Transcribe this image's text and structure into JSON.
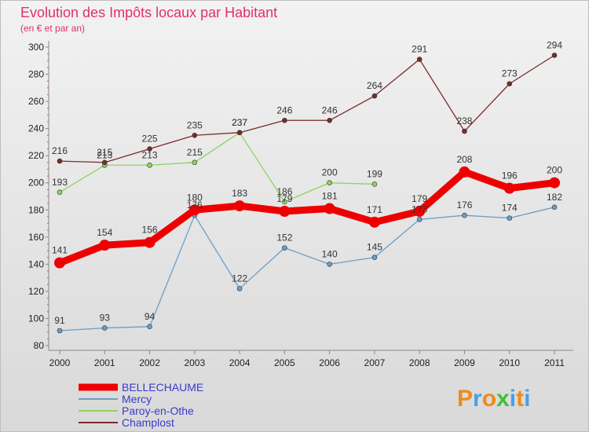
{
  "chart_data": {
    "type": "line",
    "title": "Evolution des Impôts locaux par Habitant",
    "subtitle": "(en € et par an)",
    "xlabel": "",
    "ylabel": "",
    "ylim": [
      80,
      300
    ],
    "yticks": [
      80,
      100,
      120,
      140,
      160,
      180,
      200,
      220,
      240,
      260,
      280,
      300
    ],
    "categories": [
      "2000",
      "2001",
      "2002",
      "2003",
      "2004",
      "2005",
      "2006",
      "2007",
      "2008",
      "2009",
      "2010",
      "2011"
    ],
    "grid": false,
    "legend_position": "bottom-left",
    "series": [
      {
        "name": "BELLECHAUME",
        "color": "#ee0000",
        "bold": true,
        "values": [
          141,
          154,
          156,
          180,
          183,
          179,
          181,
          171,
          179,
          208,
          196,
          200
        ]
      },
      {
        "name": "Mercy",
        "color": "#6a9ec8",
        "values": [
          91,
          93,
          94,
          176,
          122,
          152,
          140,
          145,
          173,
          176,
          174,
          182
        ]
      },
      {
        "name": "Paroy-en-Othe",
        "color": "#8ed35a",
        "values": [
          193,
          213,
          213,
          215,
          237,
          186,
          200,
          199,
          null,
          null,
          null,
          null
        ]
      },
      {
        "name": "Champlost",
        "color": "#7a2a2a",
        "values": [
          216,
          215,
          225,
          235,
          237,
          246,
          246,
          264,
          291,
          238,
          273,
          294
        ]
      }
    ]
  },
  "logo": {
    "letters": [
      "P",
      "r",
      "o",
      "x",
      "i",
      "t",
      "i"
    ],
    "colors": [
      "#f08a1c",
      "#4aa0e6",
      "#f08a1c",
      "#3fbf3f",
      "#4aa0e6",
      "#f08a1c",
      "#4aa0e6"
    ]
  }
}
